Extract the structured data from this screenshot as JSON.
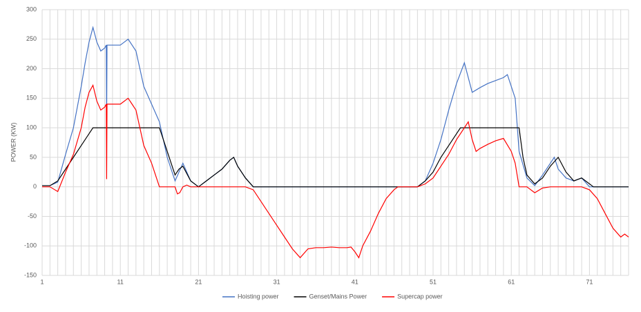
{
  "chart_data": {
    "type": "line",
    "y_label": "POWER (KW)",
    "xlim": [
      1,
      76
    ],
    "xticks": [
      1,
      11,
      21,
      31,
      41,
      51,
      61,
      71
    ],
    "xgrid_step": 1,
    "ylim": [
      -150,
      300
    ],
    "yticks": [
      -150,
      -100,
      -50,
      0,
      50,
      100,
      150,
      200,
      250,
      300
    ],
    "grid": true,
    "legend": "bottom",
    "series": [
      {
        "name": "Hoisting power",
        "color": "#4472c4",
        "x": [
          1,
          2,
          3,
          4,
          5,
          6,
          6.5,
          7,
          7.5,
          8,
          8.5,
          9,
          9.2,
          9.25,
          9.3,
          10,
          11,
          11.5,
          12,
          12.5,
          13,
          13.5,
          14,
          15,
          16,
          16.5,
          17,
          18,
          18.5,
          19,
          19.5,
          20,
          21,
          22,
          23,
          24,
          25,
          25.5,
          26,
          27,
          28,
          49,
          50,
          51,
          52,
          53,
          54,
          55,
          56,
          57,
          58,
          59,
          60,
          60.5,
          61,
          61.5,
          62,
          63,
          64,
          65,
          66,
          66.5,
          67,
          68,
          69,
          70,
          71,
          76
        ],
        "values": [
          2,
          2,
          8,
          55,
          100,
          170,
          210,
          245,
          270,
          245,
          230,
          235,
          240,
          113,
          240,
          240,
          240,
          245,
          250,
          240,
          230,
          200,
          170,
          140,
          110,
          80,
          50,
          10,
          25,
          40,
          25,
          10,
          0,
          10,
          20,
          30,
          45,
          50,
          35,
          15,
          0,
          0,
          10,
          40,
          80,
          130,
          175,
          210,
          160,
          168,
          175,
          180,
          185,
          190,
          170,
          150,
          60,
          15,
          2,
          20,
          40,
          50,
          30,
          15,
          10,
          15,
          0,
          0
        ]
      },
      {
        "name": "Genset/Mains Power",
        "color": "#000000",
        "x": [
          1,
          2,
          3,
          4,
          5,
          6,
          7,
          7.5,
          16,
          17,
          18,
          18.5,
          19,
          20,
          21,
          22,
          23,
          24,
          25,
          25.5,
          26,
          27,
          28,
          49,
          50,
          51,
          52,
          53,
          54,
          54.5,
          62,
          62.5,
          63,
          64,
          65,
          66,
          67,
          68,
          69,
          70,
          71,
          71.5,
          76
        ],
        "values": [
          2,
          2,
          10,
          30,
          50,
          70,
          90,
          100,
          100,
          60,
          20,
          30,
          35,
          10,
          0,
          10,
          20,
          30,
          45,
          50,
          35,
          15,
          0,
          0,
          10,
          25,
          50,
          70,
          90,
          100,
          100,
          50,
          20,
          5,
          15,
          35,
          50,
          25,
          10,
          15,
          5,
          0,
          0
        ]
      },
      {
        "name": "Supercap power",
        "color": "#ff0000",
        "x": [
          1,
          2,
          3,
          4,
          5,
          6,
          6.5,
          7,
          7.5,
          8,
          8.5,
          9,
          9.2,
          9.25,
          9.3,
          11,
          11.5,
          12,
          12.5,
          13,
          13.5,
          14,
          15,
          15.5,
          16,
          18,
          18.3,
          18.6,
          19,
          19.5,
          20,
          27,
          28,
          29,
          30,
          31,
          32,
          33,
          34,
          35,
          36,
          37,
          38,
          39,
          40,
          40.5,
          41,
          41.5,
          42,
          43,
          44,
          45,
          46,
          46.5,
          49,
          50,
          51,
          52,
          53,
          54,
          55,
          55.5,
          56,
          56.5,
          57,
          58,
          59,
          60,
          61,
          61.5,
          62,
          63,
          64,
          65,
          66,
          67,
          70,
          71,
          72,
          73,
          74,
          75,
          75.5,
          76
        ],
        "values": [
          0,
          0,
          -8,
          25,
          55,
          100,
          135,
          160,
          172,
          145,
          130,
          135,
          140,
          13,
          140,
          140,
          145,
          150,
          140,
          130,
          100,
          70,
          40,
          20,
          0,
          0,
          -12,
          -10,
          0,
          3,
          0,
          0,
          -5,
          -25,
          -45,
          -65,
          -85,
          -105,
          -120,
          -105,
          -103,
          -103,
          -102,
          -103,
          -103,
          -102,
          -110,
          -120,
          -100,
          -75,
          -45,
          -20,
          -5,
          0,
          0,
          5,
          15,
          35,
          55,
          80,
          100,
          110,
          80,
          60,
          65,
          72,
          78,
          82,
          60,
          40,
          0,
          0,
          -10,
          -2,
          0,
          0,
          0,
          -5,
          -20,
          -45,
          -70,
          -85,
          -80,
          -85
        ]
      }
    ]
  }
}
